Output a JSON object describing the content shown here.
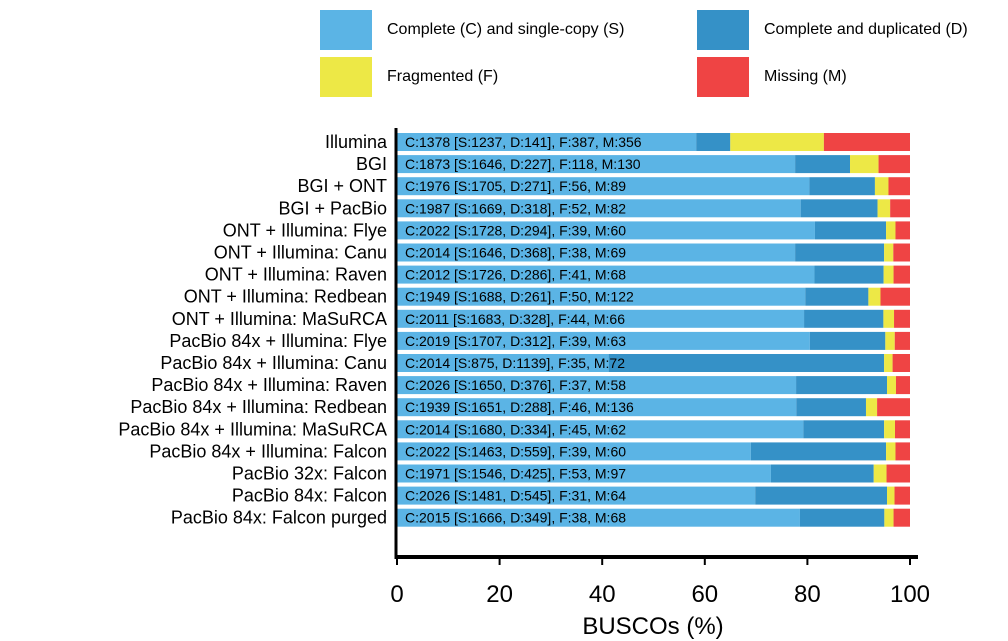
{
  "colors": {
    "single": "#5bb4e5",
    "duplicated": "#3591c7",
    "fragmented": "#ede846",
    "missing": "#ef4444"
  },
  "legend": {
    "single_label": "Complete (C) and single-copy (S)",
    "duplicated_label": "Complete and duplicated (D)",
    "fragmented_label": "Fragmented (F)",
    "missing_label": "Missing (M)"
  },
  "chart_data": {
    "type": "bar",
    "orientation": "horizontal",
    "stacked": true,
    "xlabel": "BUSCOs (%)",
    "xlim": [
      0,
      100
    ],
    "xticks": [
      "0",
      "20",
      "40",
      "60",
      "80",
      "100"
    ],
    "legend_position": "top",
    "series_names": [
      "Complete (C) and single-copy (S)",
      "Complete and duplicated (D)",
      "Fragmented (F)",
      "Missing (M)"
    ],
    "categories": [
      "Illumina",
      "BGI",
      "BGI + ONT",
      "BGI + PacBio",
      "ONT + Illumina: Flye",
      "ONT + Illumina: Canu",
      "ONT + Illumina: Raven",
      "ONT + Illumina: Redbean",
      "ONT + Illumina: MaSuRCA",
      "PacBio 84x + Illumina: Flye",
      "PacBio 84x + Illumina: Canu",
      "PacBio 84x + Illumina: Raven",
      "PacBio 84x + Illumina: Redbean",
      "PacBio 84x + Illumina: MaSuRCA",
      "PacBio 84x + Illumina: Falcon",
      "PacBio 32x: Falcon",
      "PacBio 84x: Falcon",
      "PacBio 84x: Falcon purged"
    ],
    "counts": [
      {
        "S": 1237,
        "D": 141,
        "F": 387,
        "M": 356
      },
      {
        "S": 1646,
        "D": 227,
        "F": 118,
        "M": 130
      },
      {
        "S": 1705,
        "D": 271,
        "F": 56,
        "M": 89
      },
      {
        "S": 1669,
        "D": 318,
        "F": 52,
        "M": 82
      },
      {
        "S": 1728,
        "D": 294,
        "F": 39,
        "M": 60
      },
      {
        "S": 1646,
        "D": 368,
        "F": 38,
        "M": 69
      },
      {
        "S": 1726,
        "D": 286,
        "F": 41,
        "M": 68
      },
      {
        "S": 1688,
        "D": 261,
        "F": 50,
        "M": 122
      },
      {
        "S": 1683,
        "D": 328,
        "F": 44,
        "M": 66
      },
      {
        "S": 1707,
        "D": 312,
        "F": 39,
        "M": 63
      },
      {
        "S": 875,
        "D": 1139,
        "F": 35,
        "M": 72
      },
      {
        "S": 1650,
        "D": 376,
        "F": 37,
        "M": 58
      },
      {
        "S": 1651,
        "D": 288,
        "F": 46,
        "M": 136
      },
      {
        "S": 1680,
        "D": 334,
        "F": 45,
        "M": 62
      },
      {
        "S": 1463,
        "D": 559,
        "F": 39,
        "M": 60
      },
      {
        "S": 1546,
        "D": 425,
        "F": 53,
        "M": 97
      },
      {
        "S": 1481,
        "D": 545,
        "F": 31,
        "M": 64
      },
      {
        "S": 1666,
        "D": 349,
        "F": 38,
        "M": 68
      }
    ],
    "bar_labels": [
      "C:1378 [S:1237, D:141], F:387, M:356",
      "C:1873 [S:1646, D:227], F:118, M:130",
      "C:1976 [S:1705, D:271], F:56, M:89",
      "C:1987 [S:1669, D:318], F:52, M:82",
      "C:2022 [S:1728, D:294], F:39, M:60",
      "C:2014 [S:1646, D:368], F:38, M:69",
      "C:2012 [S:1726, D:286], F:41, M:68",
      "C:1949 [S:1688, D:261], F:50, M:122",
      "C:2011 [S:1683, D:328], F:44, M:66",
      "C:2019 [S:1707, D:312], F:39, M:63",
      "C:2014 [S:875, D:1139], F:35, M:72",
      "C:2026 [S:1650, D:376], F:37, M:58",
      "C:1939 [S:1651, D:288], F:46, M:136",
      "C:2014 [S:1680, D:334], F:45, M:62",
      "C:2022 [S:1463, D:559], F:39, M:60",
      "C:1971 [S:1546, D:425], F:53, M:97",
      "C:2026 [S:1481, D:545], F:31, M:64",
      "C:2015 [S:1666, D:349], F:38, M:68"
    ]
  }
}
